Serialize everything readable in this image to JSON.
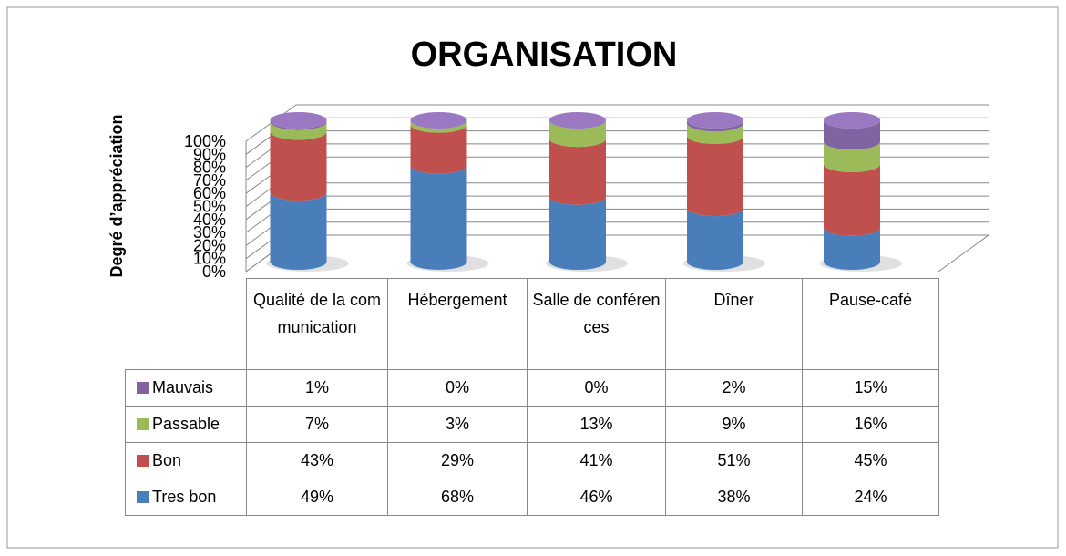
{
  "chart_data": {
    "type": "bar",
    "stacked": true,
    "title": "ORGANISATION",
    "y_label": "Degré d’appréciation",
    "categories": [
      "Qualité de la communication",
      "Hébergement",
      "Salle de conférences",
      "Dîner",
      "Pause-café"
    ],
    "series": [
      {
        "name": "Tres bon",
        "color": "#4a7ebb",
        "values": [
          49,
          68,
          46,
          38,
          24
        ],
        "value_labels": [
          "49%",
          "68%",
          "46%",
          "38%",
          "24%"
        ]
      },
      {
        "name": "Bon",
        "color": "#c0504d",
        "values": [
          43,
          29,
          41,
          51,
          45
        ],
        "value_labels": [
          "43%",
          "29%",
          "41%",
          "51%",
          "45%"
        ]
      },
      {
        "name": "Passable",
        "color": "#9bbb59",
        "values": [
          7,
          3,
          13,
          9,
          16
        ],
        "value_labels": [
          "7%",
          "3%",
          "13%",
          "9%",
          "16%"
        ]
      },
      {
        "name": "Mauvais",
        "color": "#8064a2",
        "values": [
          1,
          0,
          0,
          2,
          15
        ],
        "value_labels": [
          "1%",
          "0%",
          "0%",
          "2%",
          "15%"
        ]
      }
    ],
    "ylim": [
      0,
      100
    ],
    "yticks": [
      {
        "value": 0,
        "label": "0%"
      },
      {
        "value": 10,
        "label": "10%"
      },
      {
        "value": 20,
        "label": "20%"
      },
      {
        "value": 30,
        "label": "30%"
      },
      {
        "value": 40,
        "label": "40%"
      },
      {
        "value": 50,
        "label": "50%"
      },
      {
        "value": 60,
        "label": "60%"
      },
      {
        "value": 70,
        "label": "70%"
      },
      {
        "value": 80,
        "label": "80%"
      },
      {
        "value": 90,
        "label": "90%"
      },
      {
        "value": 100,
        "label": "100%"
      }
    ],
    "grid": true
  }
}
